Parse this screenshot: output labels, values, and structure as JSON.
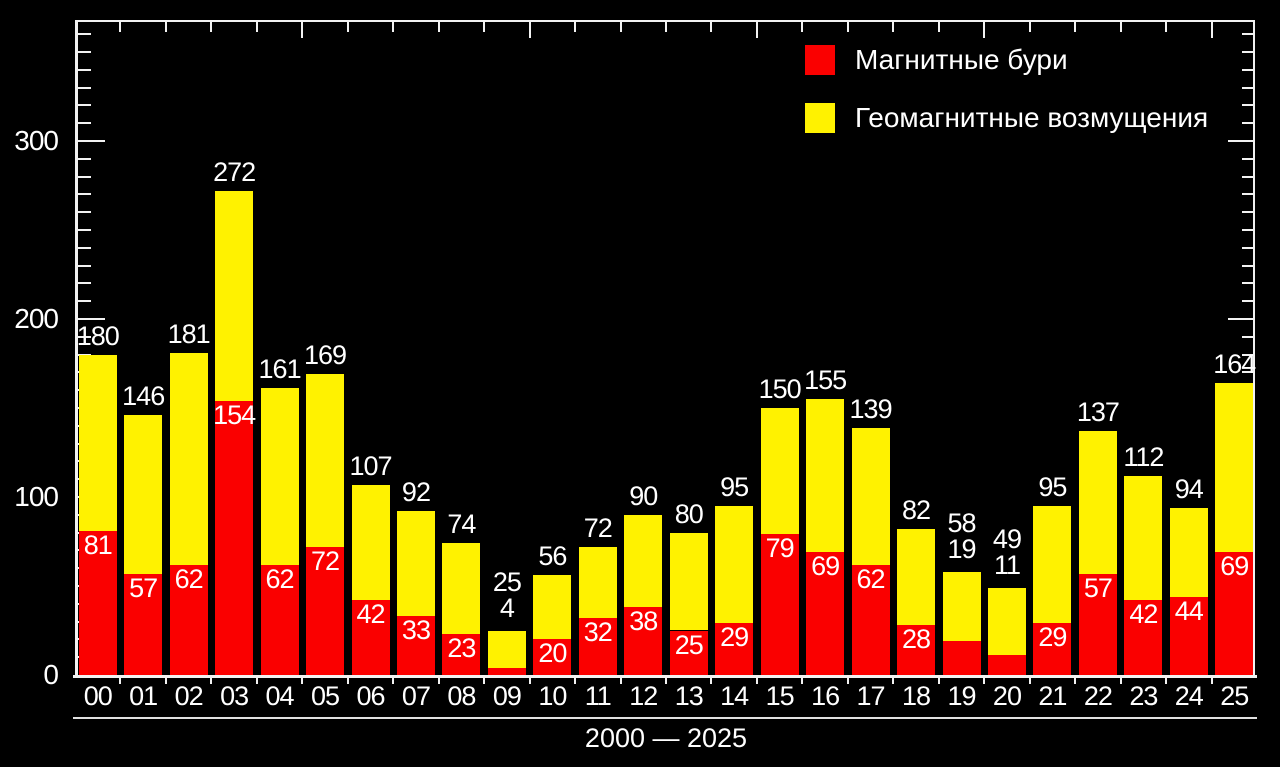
{
  "legend": {
    "items": [
      {
        "label": "Магнитные бури",
        "color": "#fa0000"
      },
      {
        "label": "Геомагнитные возмущения",
        "color": "#fff200"
      }
    ]
  },
  "chart_data": {
    "type": "bar",
    "stacked": true,
    "title": "",
    "xlabel": "2000 — 2025",
    "ylabel": "",
    "categories": [
      "00",
      "01",
      "02",
      "03",
      "04",
      "05",
      "06",
      "07",
      "08",
      "09",
      "10",
      "11",
      "12",
      "13",
      "14",
      "15",
      "16",
      "17",
      "18",
      "19",
      "20",
      "21",
      "22",
      "23",
      "24",
      "25"
    ],
    "series": [
      {
        "name": "Магнитные бури",
        "color": "#fa0000",
        "values": [
          81,
          57,
          62,
          154,
          62,
          72,
          42,
          33,
          23,
          4,
          20,
          32,
          38,
          25,
          29,
          79,
          69,
          62,
          28,
          19,
          11,
          29,
          57,
          42,
          44,
          69
        ]
      },
      {
        "name": "Геомагнитные возмущения",
        "color": "#fff200",
        "values": [
          99,
          89,
          119,
          118,
          99,
          97,
          65,
          59,
          51,
          21,
          36,
          40,
          52,
          55,
          66,
          71,
          86,
          77,
          54,
          39,
          38,
          66,
          80,
          70,
          50,
          95
        ]
      }
    ],
    "totals": [
      180,
      146,
      181,
      272,
      161,
      169,
      107,
      92,
      74,
      25,
      56,
      72,
      90,
      80,
      95,
      150,
      155,
      139,
      82,
      58,
      49,
      95,
      137,
      112,
      94,
      164
    ],
    "yticks": [
      0,
      100,
      200,
      300
    ],
    "ylim": [
      0,
      367
    ],
    "y_minor_step": 10,
    "grid": false,
    "legend_position": "top-right",
    "background": "#000000",
    "text_color": "#ffffff"
  }
}
